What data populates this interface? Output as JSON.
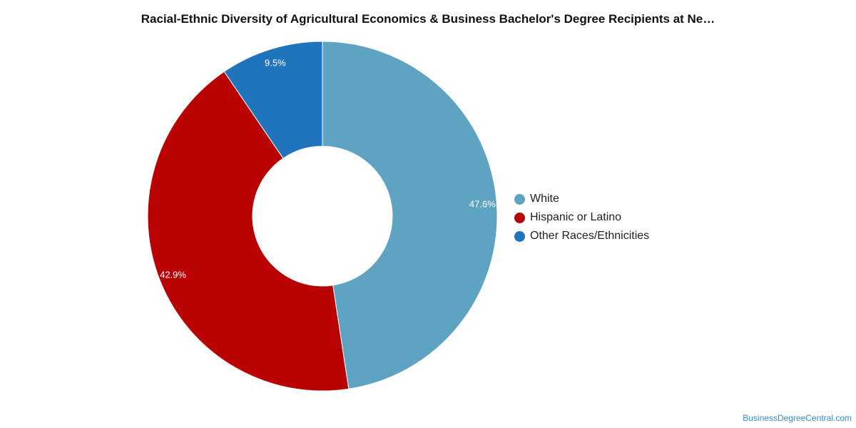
{
  "chart_data": {
    "type": "pie",
    "variant": "donut",
    "title": "Racial-Ethnic Diversity of Agricultural Economics & Business Bachelor's Degree Recipients at Ne…",
    "series": [
      {
        "categories": [
          "White",
          "Hispanic or Latino",
          "Other Races/Ethnicities"
        ],
        "values": [
          47.6,
          42.9,
          9.5
        ],
        "labels": [
          "47.6%",
          "42.9%",
          "9.5%"
        ],
        "colors": [
          "#5ea3c1",
          "#b90303",
          "#1f74bc"
        ]
      }
    ],
    "legend": {
      "position": "right",
      "items": [
        {
          "label": "White",
          "color": "#5ea3c1"
        },
        {
          "label": "Hispanic or Latino",
          "color": "#b90303"
        },
        {
          "label": "Other Races/Ethnicities",
          "color": "#1f74bc"
        }
      ]
    },
    "label_color": "#ffffff",
    "grid": false
  },
  "credit": "BusinessDegreeCentral.com"
}
